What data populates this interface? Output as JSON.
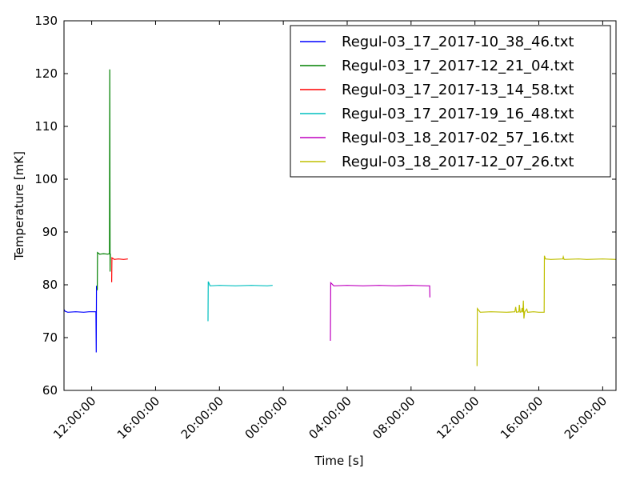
{
  "chart_data": {
    "type": "line",
    "xlabel": "Time [s]",
    "ylabel": "Temperature [mK]",
    "xlim": [
      "2017-03-17 10:16:00",
      "2017-03-18 20:50:00"
    ],
    "ylim": [
      60,
      130
    ],
    "yticks": [
      60,
      70,
      80,
      90,
      100,
      110,
      120,
      130
    ],
    "xticks": [
      {
        "t": "2017-03-17 12:00:00",
        "label": "12:00:00"
      },
      {
        "t": "2017-03-17 16:00:00",
        "label": "16:00:00"
      },
      {
        "t": "2017-03-17 20:00:00",
        "label": "20:00:00"
      },
      {
        "t": "2017-03-18 00:00:00",
        "label": "00:00:00"
      },
      {
        "t": "2017-03-18 04:00:00",
        "label": "04:00:00"
      },
      {
        "t": "2017-03-18 08:00:00",
        "label": "08:00:00"
      },
      {
        "t": "2017-03-18 12:00:00",
        "label": "12:00:00"
      },
      {
        "t": "2017-03-18 16:00:00",
        "label": "16:00:00"
      },
      {
        "t": "2017-03-18 20:00:00",
        "label": "20:00:00"
      }
    ],
    "grid": false,
    "legend_position": "top-right",
    "series": [
      {
        "name": "Regul-03_17_2017-10_38_46.txt",
        "color": "#0000ff",
        "points": [
          [
            "2017-03-17 10:16:00",
            75.3
          ],
          [
            "2017-03-17 10:20:00",
            75.0
          ],
          [
            "2017-03-17 10:30:00",
            74.8
          ],
          [
            "2017-03-17 11:00:00",
            74.9
          ],
          [
            "2017-03-17 11:30:00",
            74.8
          ],
          [
            "2017-03-17 11:50:00",
            74.9
          ],
          [
            "2017-03-17 12:16:00",
            74.9
          ],
          [
            "2017-03-17 12:17:00",
            67.2
          ],
          [
            "2017-03-17 12:18:00",
            79.8
          ],
          [
            "2017-03-17 12:19:00",
            78.9
          ]
        ]
      },
      {
        "name": "Regul-03_17_2017-12_21_04.txt",
        "color": "#008000",
        "points": [
          [
            "2017-03-17 12:21:00",
            79.0
          ],
          [
            "2017-03-17 12:22:00",
            86.1
          ],
          [
            "2017-03-17 12:30:00",
            85.8
          ],
          [
            "2017-03-17 12:45:00",
            85.9
          ],
          [
            "2017-03-17 13:00:00",
            85.8
          ],
          [
            "2017-03-17 13:07:00",
            85.9
          ],
          [
            "2017-03-17 13:08:00",
            120.8
          ],
          [
            "2017-03-17 13:09:00",
            82.5
          ],
          [
            "2017-03-17 13:10:00",
            85.9
          ]
        ]
      },
      {
        "name": "Regul-03_17_2017-13_14_58.txt",
        "color": "#ff0000",
        "points": [
          [
            "2017-03-17 13:15:00",
            80.5
          ],
          [
            "2017-03-17 13:16:00",
            85.1
          ],
          [
            "2017-03-17 13:25:00",
            84.8
          ],
          [
            "2017-03-17 13:40:00",
            84.9
          ],
          [
            "2017-03-17 14:00:00",
            84.8
          ],
          [
            "2017-03-17 14:16:00",
            84.9
          ]
        ]
      },
      {
        "name": "Regul-03_17_2017-19_16_48.txt",
        "color": "#00bfbf",
        "points": [
          [
            "2017-03-17 19:17:00",
            73.1
          ],
          [
            "2017-03-17 19:18:00",
            80.6
          ],
          [
            "2017-03-17 19:25:00",
            79.8
          ],
          [
            "2017-03-17 20:00:00",
            79.9
          ],
          [
            "2017-03-17 21:00:00",
            79.8
          ],
          [
            "2017-03-17 22:00:00",
            79.9
          ],
          [
            "2017-03-17 23:00:00",
            79.8
          ],
          [
            "2017-03-17 23:20:00",
            79.9
          ]
        ]
      },
      {
        "name": "Regul-03_18_2017-02_57_16.txt",
        "color": "#bf00bf",
        "points": [
          [
            "2017-03-18 02:57:00",
            69.4
          ],
          [
            "2017-03-18 02:58:00",
            80.4
          ],
          [
            "2017-03-18 03:10:00",
            79.8
          ],
          [
            "2017-03-18 04:00:00",
            79.9
          ],
          [
            "2017-03-18 05:00:00",
            79.8
          ],
          [
            "2017-03-18 06:00:00",
            79.9
          ],
          [
            "2017-03-18 07:00:00",
            79.8
          ],
          [
            "2017-03-18 08:00:00",
            79.9
          ],
          [
            "2017-03-18 09:00:00",
            79.8
          ],
          [
            "2017-03-18 09:10:00",
            79.8
          ],
          [
            "2017-03-18 09:11:00",
            77.6
          ]
        ]
      },
      {
        "name": "Regul-03_18_2017-12_07_26.txt",
        "color": "#bfbf00",
        "points": [
          [
            "2017-03-18 12:08:00",
            64.6
          ],
          [
            "2017-03-18 12:09:00",
            75.5
          ],
          [
            "2017-03-18 12:20:00",
            74.8
          ],
          [
            "2017-03-18 13:00:00",
            74.9
          ],
          [
            "2017-03-18 14:00:00",
            74.8
          ],
          [
            "2017-03-18 14:30:00",
            74.9
          ],
          [
            "2017-03-18 14:33:00",
            75.8
          ],
          [
            "2017-03-18 14:36:00",
            74.8
          ],
          [
            "2017-03-18 14:45:00",
            74.9
          ],
          [
            "2017-03-18 14:47:00",
            76.2
          ],
          [
            "2017-03-18 14:50:00",
            74.8
          ],
          [
            "2017-03-18 14:55:00",
            74.9
          ],
          [
            "2017-03-18 14:57:00",
            75.6
          ],
          [
            "2017-03-18 15:00:00",
            74.8
          ],
          [
            "2017-03-18 15:02:00",
            77.0
          ],
          [
            "2017-03-18 15:04:00",
            73.6
          ],
          [
            "2017-03-18 15:07:00",
            74.9
          ],
          [
            "2017-03-18 15:15:00",
            75.4
          ],
          [
            "2017-03-18 15:18:00",
            74.8
          ],
          [
            "2017-03-18 15:40:00",
            74.9
          ],
          [
            "2017-03-18 16:00:00",
            74.8
          ],
          [
            "2017-03-18 16:20:00",
            74.8
          ],
          [
            "2017-03-18 16:21:00",
            85.5
          ],
          [
            "2017-03-18 16:25:00",
            84.9
          ],
          [
            "2017-03-18 16:45:00",
            84.8
          ],
          [
            "2017-03-18 17:30:00",
            84.9
          ],
          [
            "2017-03-18 17:32:00",
            85.3
          ],
          [
            "2017-03-18 17:35:00",
            84.8
          ],
          [
            "2017-03-18 18:30:00",
            84.9
          ],
          [
            "2017-03-18 19:00:00",
            84.8
          ],
          [
            "2017-03-18 20:00:00",
            84.9
          ],
          [
            "2017-03-18 20:50:00",
            84.8
          ]
        ]
      }
    ]
  }
}
